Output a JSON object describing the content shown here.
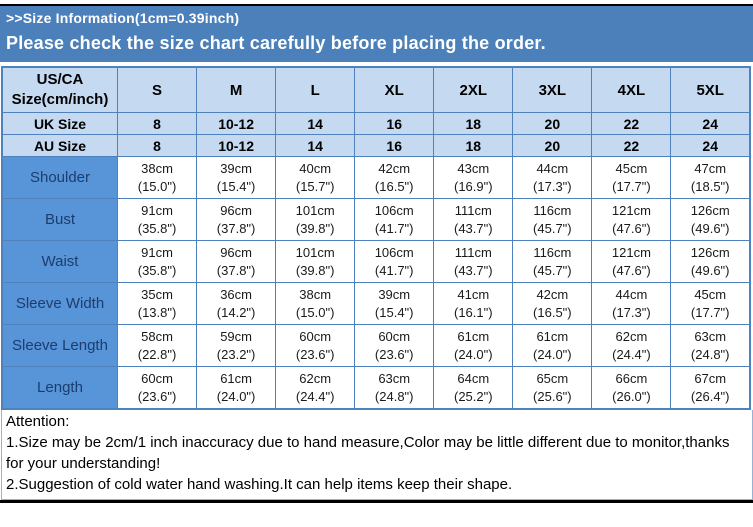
{
  "header": {
    "title": ">>Size Information(1cm=0.39inch)",
    "notice": "Please check the size chart carefully before placing the order."
  },
  "table": {
    "corner_label": "US/CA Size(cm/inch)",
    "size_columns": [
      "S",
      "M",
      "L",
      "XL",
      "2XL",
      "3XL",
      "4XL",
      "5XL"
    ],
    "size_rows": [
      {
        "label": "UK Size",
        "values": [
          "8",
          "10-12",
          "14",
          "16",
          "18",
          "20",
          "22",
          "24"
        ]
      },
      {
        "label": "AU Size",
        "values": [
          "8",
          "10-12",
          "14",
          "16",
          "18",
          "20",
          "22",
          "24"
        ]
      }
    ],
    "measurement_rows": [
      {
        "label": "Shoulder",
        "cm": [
          "38cm",
          "39cm",
          "40cm",
          "42cm",
          "43cm",
          "44cm",
          "45cm",
          "47cm"
        ],
        "inch": [
          "(15.0\")",
          "(15.4\")",
          "(15.7\")",
          "(16.5\")",
          "(16.9\")",
          "(17.3\")",
          "(17.7\")",
          "(18.5\")"
        ]
      },
      {
        "label": "Bust",
        "cm": [
          "91cm",
          "96cm",
          "101cm",
          "106cm",
          "111cm",
          "116cm",
          "121cm",
          "126cm"
        ],
        "inch": [
          "(35.8\")",
          "(37.8\")",
          "(39.8\")",
          "(41.7\")",
          "(43.7\")",
          "(45.7\")",
          "(47.6\")",
          "(49.6\")"
        ]
      },
      {
        "label": "Waist",
        "cm": [
          "91cm",
          "96cm",
          "101cm",
          "106cm",
          "111cm",
          "116cm",
          "121cm",
          "126cm"
        ],
        "inch": [
          "(35.8\")",
          "(37.8\")",
          "(39.8\")",
          "(41.7\")",
          "(43.7\")",
          "(45.7\")",
          "(47.6\")",
          "(49.6\")"
        ]
      },
      {
        "label": "Sleeve Width",
        "cm": [
          "35cm",
          "36cm",
          "38cm",
          "39cm",
          "41cm",
          "42cm",
          "44cm",
          "45cm"
        ],
        "inch": [
          "(13.8\")",
          "(14.2\")",
          "(15.0\")",
          "(15.4\")",
          "(16.1\")",
          "(16.5\")",
          "(17.3\")",
          "(17.7\")"
        ]
      },
      {
        "label": "Sleeve Length",
        "cm": [
          "58cm",
          "59cm",
          "60cm",
          "60cm",
          "61cm",
          "61cm",
          "62cm",
          "63cm"
        ],
        "inch": [
          "(22.8\")",
          "(23.2\")",
          "(23.6\")",
          "(23.6\")",
          "(24.0\")",
          "(24.0\")",
          "(24.4\")",
          "(24.8\")"
        ]
      },
      {
        "label": "Length",
        "cm": [
          "60cm",
          "61cm",
          "62cm",
          "63cm",
          "64cm",
          "65cm",
          "66cm",
          "67cm"
        ],
        "inch": [
          "(23.6\")",
          "(24.0\")",
          "(24.4\")",
          "(24.8\")",
          "(25.2\")",
          "(25.6\")",
          "(26.0\")",
          "(26.4\")"
        ]
      }
    ]
  },
  "attention": {
    "title": "Attention:",
    "notes": [
      "1.Size may be 2cm/1 inch inaccuracy due to hand measure,Color may be little different due to monitor,thanks for your understanding!",
      "2.Suggestion of cold water hand washing.It can help items keep their shape."
    ]
  },
  "colors": {
    "banner_blue": "#4c80ba",
    "light_blue_cell": "#c5d9f1",
    "label_blue_cell": "#5794d8",
    "label_text_navy": "#1c3d6e",
    "table_border_blue": "#4f81bd",
    "rule_black": "#000000"
  }
}
